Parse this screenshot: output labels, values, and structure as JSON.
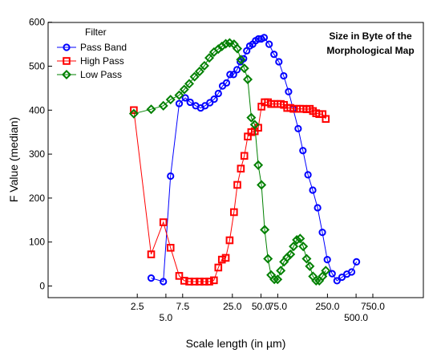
{
  "chart_data": {
    "type": "line",
    "title": "",
    "annotation_lines": [
      "Size in Byte of the",
      "Morphological Map"
    ],
    "xlabel": "Scale length (in µm)",
    "ylabel": "F Value (median)",
    "x_scale": "log",
    "ylim": [
      0,
      600
    ],
    "y_ticks": [
      0,
      100,
      200,
      300,
      400,
      500,
      600
    ],
    "y_tick_labels": [
      "0",
      "100",
      "200",
      "300",
      "400",
      "500",
      "600"
    ],
    "x_ticks_upper": [
      2.5,
      7.5,
      25,
      50,
      75,
      250,
      750
    ],
    "x_ticks_upper_labels": [
      "2.5",
      "7.5",
      "25.0",
      "50.0",
      "75.0",
      "250.0",
      "750.0"
    ],
    "x_ticks_lower": [
      5,
      500
    ],
    "x_ticks_lower_labels": [
      "5.0",
      "500.0"
    ],
    "grid": false,
    "legend": {
      "title": "Filter",
      "position": "top-left"
    },
    "series": [
      {
        "name": "Pass Band",
        "color": "#0000ff",
        "marker": "circle",
        "points": [
          [
            3.5,
            18
          ],
          [
            4.7,
            10
          ],
          [
            5.6,
            250
          ],
          [
            6.9,
            415
          ],
          [
            8.0,
            428
          ],
          [
            9.0,
            418
          ],
          [
            10.3,
            410
          ],
          [
            11.6,
            405
          ],
          [
            12.9,
            410
          ],
          [
            14.5,
            417
          ],
          [
            16.1,
            425
          ],
          [
            17.8,
            438
          ],
          [
            19.7,
            455
          ],
          [
            21.7,
            462
          ],
          [
            23.6,
            481
          ],
          [
            25.7,
            481
          ],
          [
            28.0,
            492
          ],
          [
            30.3,
            510
          ],
          [
            32.8,
            517
          ],
          [
            35.4,
            535
          ],
          [
            38.1,
            546
          ],
          [
            40.9,
            550
          ],
          [
            43.9,
            558
          ],
          [
            47.0,
            562
          ],
          [
            50.4,
            562
          ],
          [
            54.0,
            565
          ],
          [
            60.9,
            550
          ],
          [
            68.5,
            527
          ],
          [
            77.1,
            510
          ],
          [
            86.7,
            478
          ],
          [
            97.5,
            442
          ],
          [
            109,
            403
          ],
          [
            123,
            358
          ],
          [
            138,
            308
          ],
          [
            156,
            253
          ],
          [
            175,
            218
          ],
          [
            197,
            178
          ],
          [
            221,
            122
          ],
          [
            249,
            60
          ],
          [
            280,
            28
          ],
          [
            315,
            12
          ],
          [
            355,
            20
          ],
          [
            400,
            27
          ],
          [
            449,
            32
          ],
          [
            505,
            55
          ]
        ]
      },
      {
        "name": "High Pass",
        "color": "#ff0000",
        "marker": "square",
        "points": [
          [
            2.3,
            400
          ],
          [
            3.5,
            72
          ],
          [
            4.7,
            145
          ],
          [
            5.6,
            87
          ],
          [
            6.9,
            23
          ],
          [
            7.8,
            12
          ],
          [
            8.8,
            10
          ],
          [
            10.0,
            10
          ],
          [
            11.3,
            10
          ],
          [
            12.7,
            10
          ],
          [
            14.3,
            10
          ],
          [
            16.0,
            13
          ],
          [
            17.8,
            42
          ],
          [
            19.4,
            60
          ],
          [
            21.3,
            64
          ],
          [
            23.4,
            104
          ],
          [
            26.0,
            168
          ],
          [
            28.2,
            230
          ],
          [
            30.7,
            267
          ],
          [
            33.4,
            296
          ],
          [
            36.3,
            340
          ],
          [
            39.5,
            350
          ],
          [
            43.0,
            352
          ],
          [
            46.8,
            360
          ],
          [
            50.6,
            408
          ],
          [
            54.7,
            418
          ],
          [
            59.2,
            418
          ],
          [
            63.9,
            414
          ],
          [
            69.1,
            414
          ],
          [
            74.7,
            414
          ],
          [
            80.7,
            414
          ],
          [
            87.2,
            412
          ],
          [
            94.3,
            405
          ],
          [
            102,
            405
          ],
          [
            110,
            403
          ],
          [
            119,
            403
          ],
          [
            129,
            403
          ],
          [
            139,
            403
          ],
          [
            151,
            402
          ],
          [
            163,
            403
          ],
          [
            176,
            398
          ],
          [
            190,
            393
          ],
          [
            205,
            391
          ],
          [
            222,
            391
          ],
          [
            240,
            380
          ]
        ]
      },
      {
        "name": "Low Pass",
        "color": "#008000",
        "marker": "diamond",
        "points": [
          [
            2.3,
            392
          ],
          [
            3.5,
            402
          ],
          [
            4.7,
            410
          ],
          [
            5.6,
            424
          ],
          [
            6.9,
            434
          ],
          [
            7.8,
            447
          ],
          [
            8.8,
            460
          ],
          [
            10.0,
            476
          ],
          [
            11.3,
            488
          ],
          [
            12.7,
            501
          ],
          [
            14.3,
            519
          ],
          [
            16.0,
            532
          ],
          [
            17.8,
            539
          ],
          [
            19.4,
            545
          ],
          [
            21.3,
            551
          ],
          [
            23.4,
            553
          ],
          [
            26.0,
            550
          ],
          [
            28.2,
            540
          ],
          [
            30.7,
            515
          ],
          [
            33.4,
            495
          ],
          [
            36.3,
            470
          ],
          [
            39.5,
            383
          ],
          [
            43.0,
            367
          ],
          [
            46.8,
            275
          ],
          [
            50.6,
            230
          ],
          [
            54.7,
            128
          ],
          [
            59.2,
            62
          ],
          [
            63.9,
            25
          ],
          [
            69.1,
            15
          ],
          [
            74.7,
            15
          ],
          [
            80.7,
            35
          ],
          [
            87.2,
            55
          ],
          [
            94.3,
            65
          ],
          [
            102,
            72
          ],
          [
            110,
            90
          ],
          [
            119,
            105
          ],
          [
            129,
            108
          ],
          [
            139,
            90
          ],
          [
            151,
            62
          ],
          [
            163,
            45
          ],
          [
            176,
            22
          ],
          [
            190,
            12
          ],
          [
            205,
            12
          ],
          [
            222,
            22
          ],
          [
            240,
            35
          ]
        ]
      }
    ]
  }
}
